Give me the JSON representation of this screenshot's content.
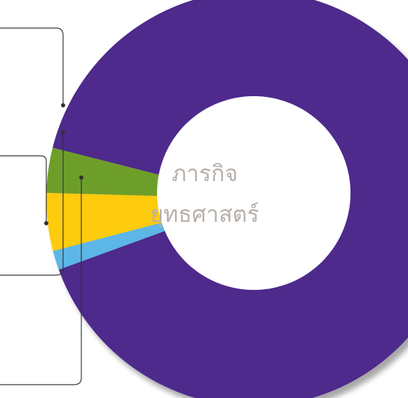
{
  "chart_data": {
    "type": "pie",
    "title": "",
    "center_label_lines": [
      "ภารกิจ",
      "ยุทธศาสตร์"
    ],
    "slices": [
      {
        "value": 1.5,
        "color": "#5bb6e6"
      },
      {
        "value": 4.5,
        "color": "#fecb08"
      },
      {
        "value": 3.5,
        "color": "#6e9e2b"
      },
      {
        "value": 90.5,
        "color": "#4e2a8c"
      }
    ],
    "hole_color": "#ffffff",
    "legend": "none",
    "annotation_callouts": "left"
  }
}
